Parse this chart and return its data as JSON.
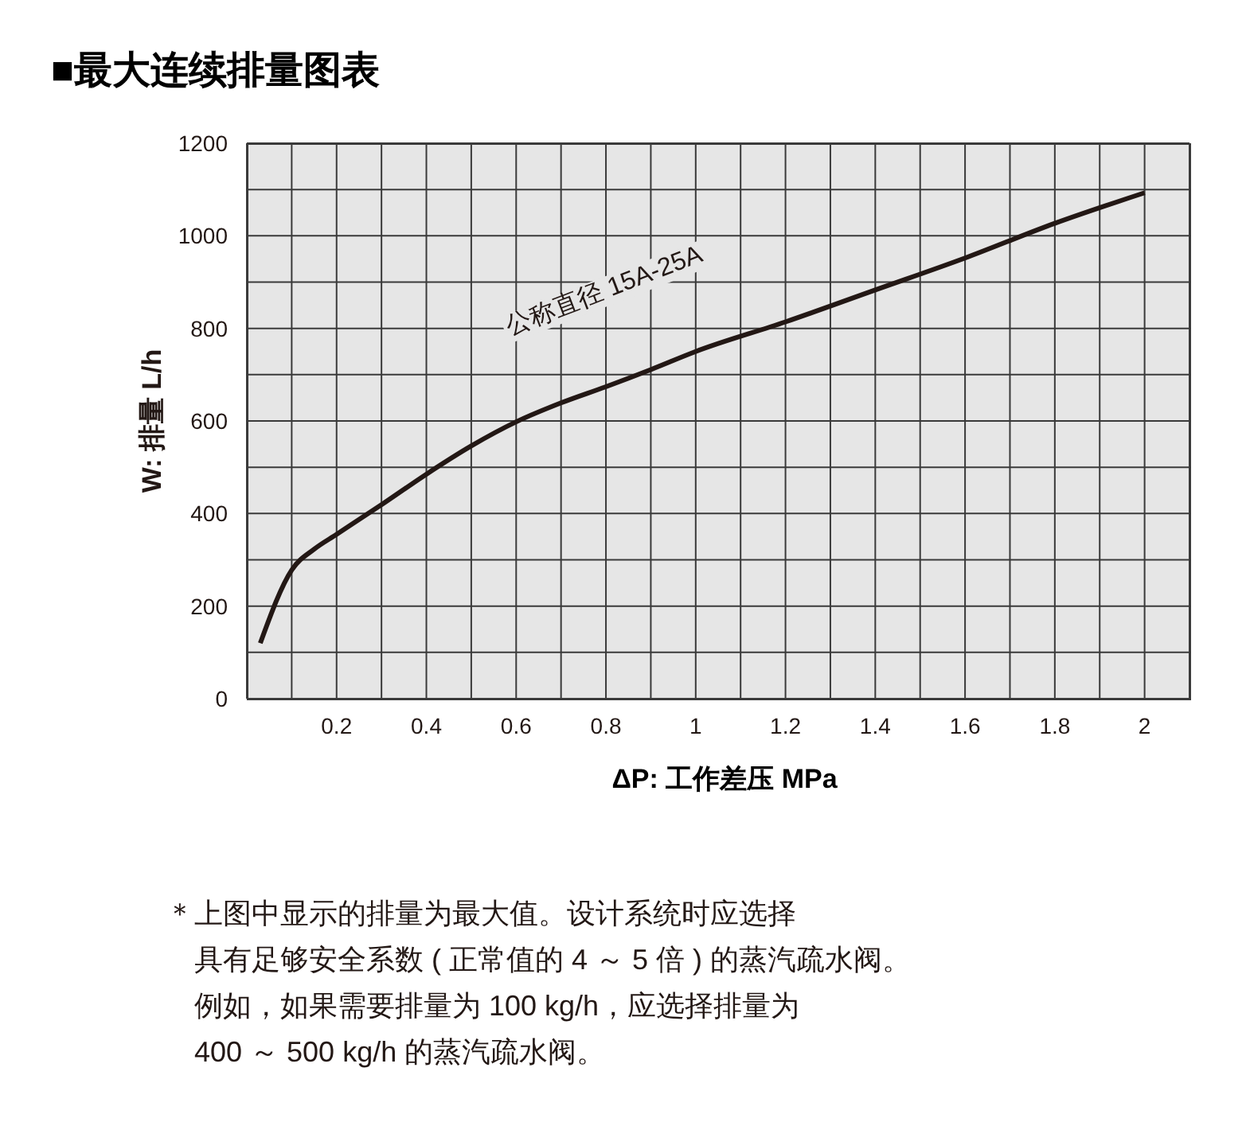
{
  "chart_data": {
    "type": "line",
    "title": "■最大连续排量图表",
    "xlabel": "ΔP: 工作差压 MPa",
    "ylabel": "W: 排量 L/h",
    "x": [
      0.03,
      0.1,
      0.15,
      0.2,
      0.3,
      0.4,
      0.5,
      0.6,
      0.7,
      0.8,
      0.9,
      1.0,
      1.2,
      1.4,
      1.6,
      1.8,
      2.0
    ],
    "series": [
      {
        "color": "#231815",
        "values": [
          120,
          278,
          323,
          355,
          419,
          485,
          546,
          598,
          639,
          674,
          711,
          750,
          814,
          883,
          952,
          1027,
          1093
        ]
      }
    ],
    "xlim": [
      0,
      2.1
    ],
    "xticks": [
      {
        "value": 0.1,
        "label": null
      },
      0.2,
      {
        "value": 0.3,
        "label": null
      },
      0.4,
      {
        "value": 0.5,
        "label": null
      },
      0.6,
      {
        "value": 0.7,
        "label": null
      },
      0.8,
      {
        "value": 0.9,
        "label": null
      },
      1,
      {
        "value": 1.1,
        "label": null
      },
      1.2,
      {
        "value": 1.3,
        "label": null
      },
      1.4,
      {
        "value": 1.5,
        "label": null
      },
      1.6,
      {
        "value": 1.7,
        "label": null
      },
      1.8,
      {
        "value": 1.9,
        "label": null
      },
      2
    ],
    "ylim": [
      0,
      1200
    ],
    "yticks": [
      0,
      {
        "value": 100,
        "label": null
      },
      200,
      {
        "value": 300,
        "label": null
      },
      400,
      {
        "value": 500,
        "label": null
      },
      600,
      {
        "value": 700,
        "label": null
      },
      800,
      {
        "value": 900,
        "label": null
      },
      1000,
      {
        "value": 1100,
        "label": null
      },
      1200
    ],
    "grid": true,
    "marker": "none",
    "line_style": "solid",
    "legend": false,
    "annotations": [
      "公称直径 15A-25A",
      "＊上图中显示的排量为最大值。设计系统时应选择",
      "具有足够安全系数 ( 正常值的 4 ～ 5 倍 ) 的蒸汽疏水阀。",
      "例如，如果需要排量为 100 kg/h，应选择排量为",
      "400 ～ 500 kg/h 的蒸汽疏水阀。"
    ]
  }
}
